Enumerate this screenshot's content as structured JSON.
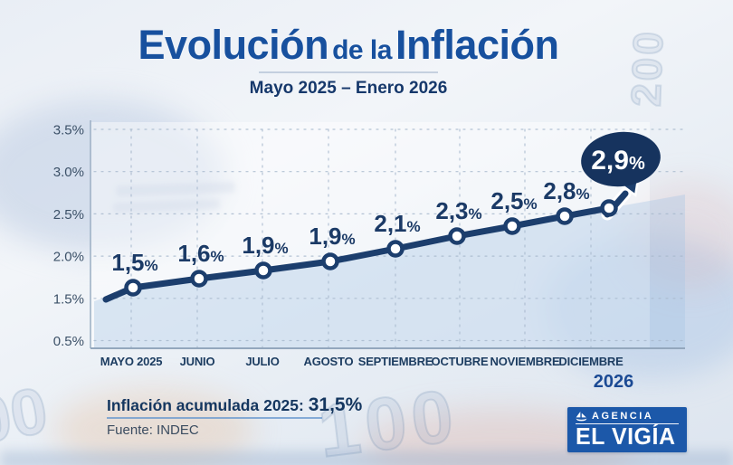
{
  "header": {
    "title_part1": "Evolución",
    "title_part2": "de la",
    "title_part3": "Inflación",
    "subtitle": "Mayo 2025 – Enero 2026"
  },
  "chart_data": {
    "type": "line",
    "title": "Evolución de la Inflación",
    "subtitle": "Mayo 2025 – Enero 2026",
    "x": [
      "Mayo 2025",
      "Junio",
      "Julio",
      "Agosto",
      "Septiembre",
      "Octubre",
      "Noviembre",
      "Diciembre",
      "Enero 2026"
    ],
    "values": [
      1.5,
      1.6,
      1.9,
      1.9,
      2.1,
      2.3,
      2.5,
      2.8,
      2.9
    ],
    "point_labels": [
      "1,5%",
      "1,6%",
      "1,9%",
      "1,9%",
      "2,1%",
      "2,3%",
      "2,5%",
      "2,8%"
    ],
    "highlight_label": "2,9%",
    "x_tick_labels": [
      "MAYO 2025",
      "JUNIO",
      "JULIO",
      "AGOSTO",
      "SEPTIEMBRE",
      "OCTUBRE",
      "NOVIEMBRE",
      "DICIEMBRE"
    ],
    "year_label": "2026",
    "y_tick_labels": [
      "3.5%",
      "3.0%",
      "2.5%",
      "2.0%",
      "1.5%",
      "0.5%"
    ],
    "ylim": [
      0.5,
      3.5
    ],
    "grid": "dashed horizontal and vertical gridlines",
    "legend": "none",
    "line_color": "#1c3e6d",
    "marker_style": "white circle with navy ring",
    "highlight_bubble_color": "#16335e"
  },
  "footer": {
    "accumulated_label": "Inflación acumulada 2025:",
    "accumulated_value": "31,5%",
    "source": "Fuente: INDEC"
  },
  "logo": {
    "agency": "AGENCIA",
    "name": "EL VIGÍA"
  },
  "background": {
    "watermarks": [
      "200",
      "100",
      "00"
    ]
  },
  "colors": {
    "title_blue": "#17509e",
    "navy": "#1c3e6d",
    "logo_blue": "#1c58a9"
  }
}
